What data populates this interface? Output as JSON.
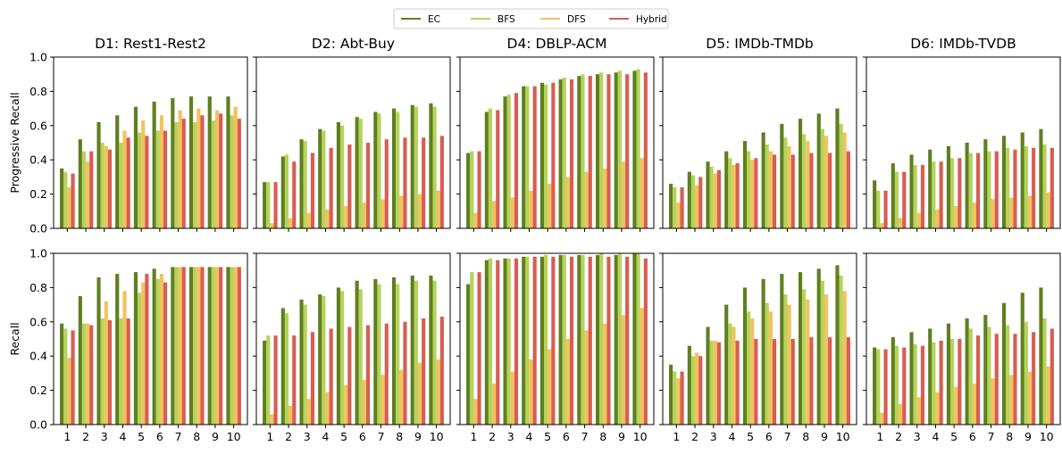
{
  "chart_data": {
    "type": "bar",
    "categories": [
      "1",
      "2",
      "3",
      "4",
      "5",
      "6",
      "7",
      "8",
      "9",
      "10"
    ],
    "legend": {
      "placement": "top-center",
      "entries": [
        {
          "name": "EC",
          "color": "#5f7f1f"
        },
        {
          "name": "BFS",
          "color": "#b5d35a"
        },
        {
          "name": "DFS",
          "color": "#f2c25e"
        },
        {
          "name": "Hybrid",
          "color": "#d85d52"
        }
      ]
    },
    "row_ylabels": [
      "Progressive Recall",
      "Recall"
    ],
    "ylim": [
      0,
      1.0
    ],
    "yticks": [
      "0.0",
      "0.2",
      "0.4",
      "0.6",
      "0.8",
      "1.0"
    ],
    "panels": [
      {
        "title": "D1: Rest1-Rest2",
        "row": 0,
        "col": 0,
        "series": [
          {
            "name": "EC",
            "values": [
              0.35,
              0.52,
              0.62,
              0.66,
              0.71,
              0.74,
              0.76,
              0.77,
              0.77,
              0.77
            ]
          },
          {
            "name": "BFS",
            "values": [
              0.33,
              0.45,
              0.5,
              0.5,
              0.56,
              0.57,
              0.62,
              0.62,
              0.63,
              0.66
            ]
          },
          {
            "name": "DFS",
            "values": [
              0.24,
              0.39,
              0.48,
              0.57,
              0.63,
              0.66,
              0.69,
              0.7,
              0.69,
              0.71
            ]
          },
          {
            "name": "Hybrid",
            "values": [
              0.32,
              0.45,
              0.46,
              0.53,
              0.54,
              0.57,
              0.64,
              0.66,
              0.67,
              0.64
            ]
          }
        ]
      },
      {
        "title": "D2: Abt-Buy",
        "row": 0,
        "col": 1,
        "series": [
          {
            "name": "EC",
            "values": [
              0.27,
              0.42,
              0.52,
              0.58,
              0.62,
              0.65,
              0.68,
              0.7,
              0.72,
              0.73
            ]
          },
          {
            "name": "BFS",
            "values": [
              0.27,
              0.43,
              0.51,
              0.57,
              0.6,
              0.64,
              0.67,
              0.68,
              0.71,
              0.71
            ]
          },
          {
            "name": "DFS",
            "values": [
              0.03,
              0.06,
              0.09,
              0.11,
              0.13,
              0.15,
              0.17,
              0.19,
              0.2,
              0.22
            ]
          },
          {
            "name": "Hybrid",
            "values": [
              0.27,
              0.39,
              0.44,
              0.47,
              0.49,
              0.5,
              0.52,
              0.53,
              0.53,
              0.54
            ]
          }
        ]
      },
      {
        "title": "D4: DBLP-ACM",
        "row": 0,
        "col": 2,
        "series": [
          {
            "name": "EC",
            "values": [
              0.44,
              0.68,
              0.77,
              0.83,
              0.85,
              0.87,
              0.89,
              0.9,
              0.91,
              0.92
            ]
          },
          {
            "name": "BFS",
            "values": [
              0.45,
              0.7,
              0.78,
              0.83,
              0.84,
              0.88,
              0.9,
              0.91,
              0.92,
              0.93
            ]
          },
          {
            "name": "DFS",
            "values": [
              0.09,
              0.16,
              0.18,
              0.22,
              0.26,
              0.3,
              0.33,
              0.35,
              0.39,
              0.41
            ]
          },
          {
            "name": "Hybrid",
            "values": [
              0.45,
              0.69,
              0.79,
              0.83,
              0.85,
              0.87,
              0.89,
              0.9,
              0.9,
              0.91
            ]
          }
        ]
      },
      {
        "title": "D5: IMDb-TMDb",
        "row": 0,
        "col": 3,
        "series": [
          {
            "name": "EC",
            "values": [
              0.26,
              0.33,
              0.39,
              0.45,
              0.51,
              0.56,
              0.61,
              0.64,
              0.67,
              0.7
            ]
          },
          {
            "name": "BFS",
            "values": [
              0.24,
              0.31,
              0.36,
              0.41,
              0.45,
              0.49,
              0.53,
              0.55,
              0.58,
              0.61
            ]
          },
          {
            "name": "DFS",
            "values": [
              0.15,
              0.25,
              0.32,
              0.37,
              0.4,
              0.45,
              0.48,
              0.51,
              0.54,
              0.56
            ]
          },
          {
            "name": "Hybrid",
            "values": [
              0.24,
              0.3,
              0.34,
              0.38,
              0.41,
              0.43,
              0.43,
              0.44,
              0.44,
              0.45
            ]
          }
        ]
      },
      {
        "title": "D6: IMDb-TVDB",
        "row": 0,
        "col": 4,
        "series": [
          {
            "name": "EC",
            "values": [
              0.28,
              0.38,
              0.43,
              0.46,
              0.48,
              0.5,
              0.52,
              0.54,
              0.56,
              0.58
            ]
          },
          {
            "name": "BFS",
            "values": [
              0.22,
              0.33,
              0.37,
              0.39,
              0.41,
              0.44,
              0.45,
              0.47,
              0.48,
              0.49
            ]
          },
          {
            "name": "DFS",
            "values": [
              0.03,
              0.06,
              0.09,
              0.11,
              0.13,
              0.15,
              0.17,
              0.18,
              0.19,
              0.21
            ]
          },
          {
            "name": "Hybrid",
            "values": [
              0.22,
              0.33,
              0.37,
              0.39,
              0.41,
              0.44,
              0.45,
              0.46,
              0.47,
              0.47
            ]
          }
        ]
      },
      {
        "title": "",
        "row": 1,
        "col": 0,
        "series": [
          {
            "name": "EC",
            "values": [
              0.59,
              0.75,
              0.86,
              0.88,
              0.89,
              0.91,
              0.92,
              0.92,
              0.92,
              0.92
            ]
          },
          {
            "name": "BFS",
            "values": [
              0.56,
              0.59,
              0.62,
              0.62,
              0.77,
              0.85,
              0.92,
              0.92,
              0.92,
              0.92
            ]
          },
          {
            "name": "DFS",
            "values": [
              0.39,
              0.59,
              0.72,
              0.78,
              0.83,
              0.88,
              0.92,
              0.92,
              0.92,
              0.92
            ]
          },
          {
            "name": "Hybrid",
            "values": [
              0.55,
              0.58,
              0.61,
              0.62,
              0.88,
              0.83,
              0.92,
              0.92,
              0.92,
              0.92
            ]
          }
        ]
      },
      {
        "title": "",
        "row": 1,
        "col": 1,
        "series": [
          {
            "name": "EC",
            "values": [
              0.49,
              0.68,
              0.73,
              0.76,
              0.8,
              0.84,
              0.85,
              0.86,
              0.87,
              0.87
            ]
          },
          {
            "name": "BFS",
            "values": [
              0.52,
              0.65,
              0.7,
              0.75,
              0.78,
              0.79,
              0.82,
              0.82,
              0.84,
              0.84
            ]
          },
          {
            "name": "DFS",
            "values": [
              0.06,
              0.11,
              0.15,
              0.19,
              0.23,
              0.26,
              0.29,
              0.32,
              0.36,
              0.38
            ]
          },
          {
            "name": "Hybrid",
            "values": [
              0.52,
              0.52,
              0.54,
              0.56,
              0.57,
              0.58,
              0.59,
              0.6,
              0.62,
              0.63
            ]
          }
        ]
      },
      {
        "title": "",
        "row": 1,
        "col": 2,
        "series": [
          {
            "name": "EC",
            "values": [
              0.82,
              0.96,
              0.97,
              0.98,
              0.98,
              0.99,
              0.99,
              0.99,
              0.99,
              1.0
            ]
          },
          {
            "name": "BFS",
            "values": [
              0.89,
              0.97,
              0.97,
              0.98,
              0.99,
              0.99,
              0.99,
              1.0,
              1.0,
              1.0
            ]
          },
          {
            "name": "DFS",
            "values": [
              0.15,
              0.24,
              0.31,
              0.38,
              0.44,
              0.5,
              0.55,
              0.59,
              0.64,
              0.68
            ]
          },
          {
            "name": "Hybrid",
            "values": [
              0.89,
              0.96,
              0.97,
              0.98,
              0.98,
              0.98,
              0.98,
              0.98,
              0.98,
              0.97
            ]
          }
        ]
      },
      {
        "title": "",
        "row": 1,
        "col": 3,
        "series": [
          {
            "name": "EC",
            "values": [
              0.35,
              0.46,
              0.57,
              0.7,
              0.8,
              0.85,
              0.88,
              0.89,
              0.91,
              0.93
            ]
          },
          {
            "name": "BFS",
            "values": [
              0.31,
              0.4,
              0.49,
              0.59,
              0.66,
              0.71,
              0.76,
              0.79,
              0.84,
              0.87
            ]
          },
          {
            "name": "DFS",
            "values": [
              0.27,
              0.42,
              0.49,
              0.57,
              0.62,
              0.66,
              0.7,
              0.73,
              0.76,
              0.78
            ]
          },
          {
            "name": "Hybrid",
            "values": [
              0.31,
              0.4,
              0.48,
              0.49,
              0.5,
              0.5,
              0.5,
              0.51,
              0.51,
              0.51
            ]
          }
        ]
      },
      {
        "title": "",
        "row": 1,
        "col": 4,
        "series": [
          {
            "name": "EC",
            "values": [
              0.45,
              0.51,
              0.54,
              0.56,
              0.59,
              0.62,
              0.64,
              0.71,
              0.77,
              0.8
            ]
          },
          {
            "name": "BFS",
            "values": [
              0.44,
              0.46,
              0.47,
              0.48,
              0.5,
              0.56,
              0.57,
              0.58,
              0.6,
              0.62
            ]
          },
          {
            "name": "DFS",
            "values": [
              0.07,
              0.12,
              0.16,
              0.19,
              0.22,
              0.24,
              0.27,
              0.29,
              0.31,
              0.34
            ]
          },
          {
            "name": "Hybrid",
            "values": [
              0.44,
              0.45,
              0.46,
              0.49,
              0.5,
              0.52,
              0.53,
              0.53,
              0.54,
              0.56
            ]
          }
        ]
      }
    ]
  }
}
